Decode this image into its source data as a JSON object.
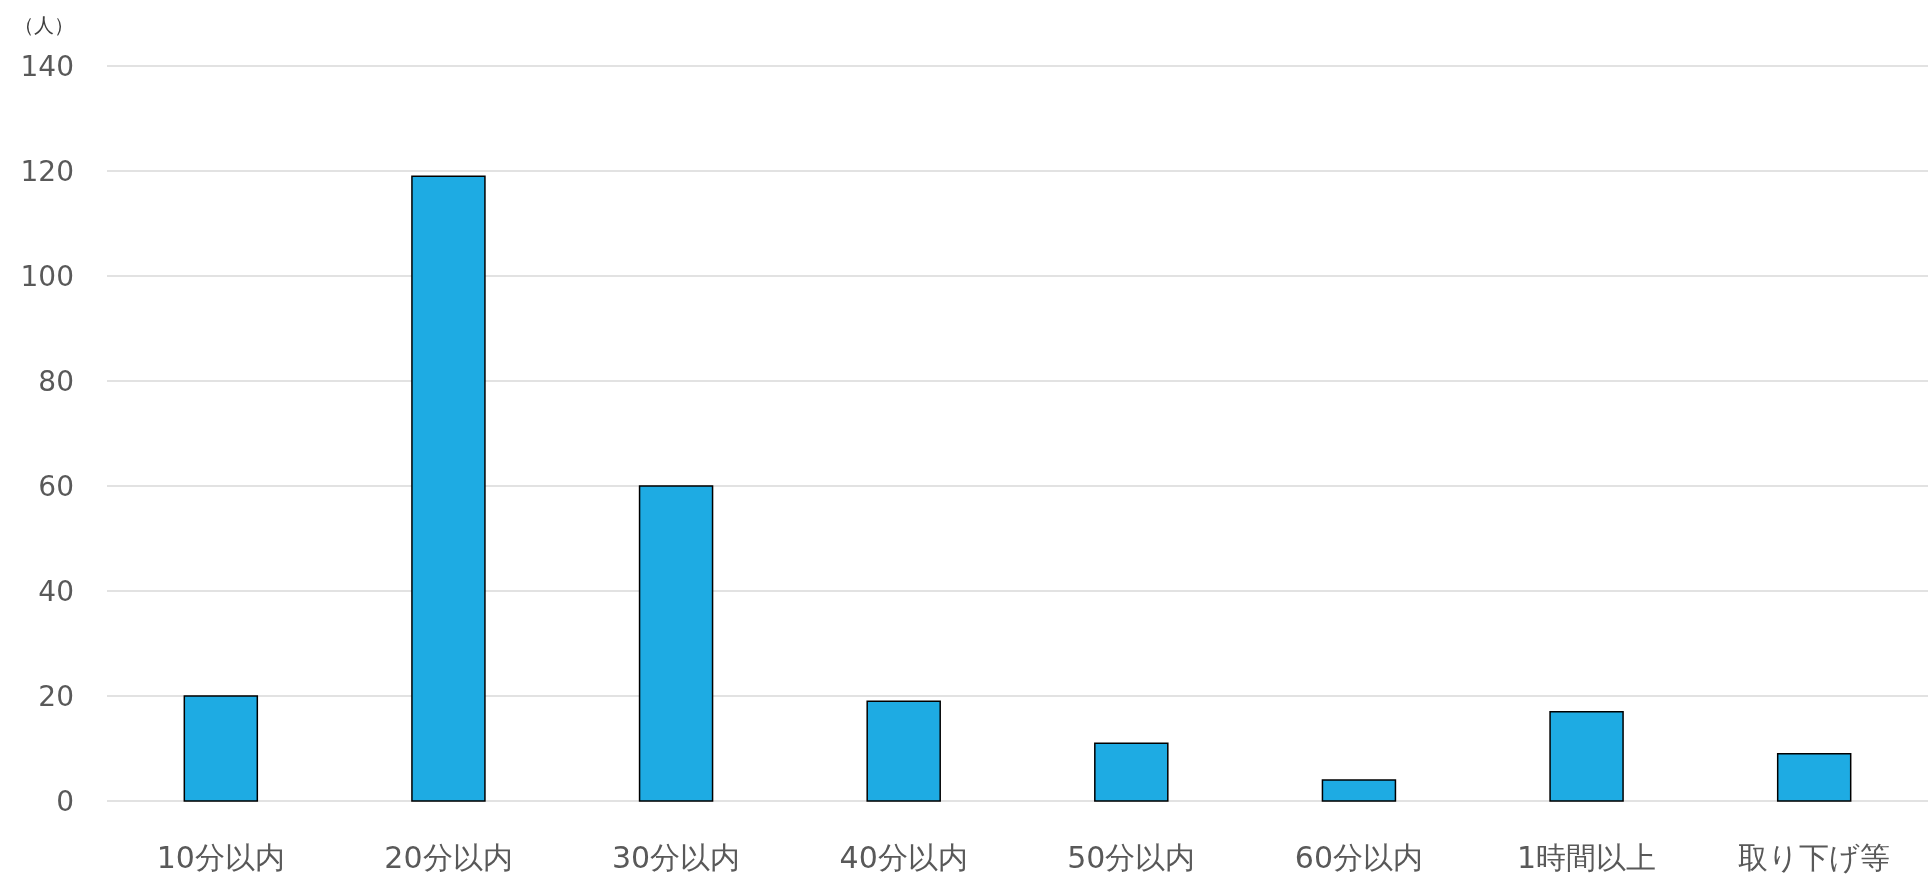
{
  "chart_data": {
    "type": "bar",
    "ylabel": "（人）",
    "categories": [
      "10分以内",
      "20分以内",
      "30分以内",
      "40分以内",
      "50分以内",
      "60分以内",
      "1時間以上",
      "取り下げ等"
    ],
    "values": [
      20,
      119,
      60,
      19,
      11,
      4,
      17,
      9
    ],
    "color": "#1eabe3",
    "ylim": [
      0,
      140
    ],
    "yticks": [
      0,
      20,
      40,
      60,
      80,
      100,
      120,
      140
    ],
    "grid": "y"
  }
}
